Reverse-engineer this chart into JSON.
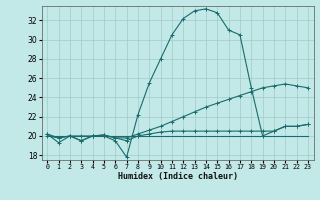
{
  "xlabel": "Humidex (Indice chaleur)",
  "bg_color": "#c2e8e8",
  "grid_color": "#a0cccc",
  "line_color": "#1a6b6b",
  "xlim": [
    -0.5,
    23.5
  ],
  "ylim": [
    17.5,
    33.5
  ],
  "yticks": [
    18,
    20,
    22,
    24,
    26,
    28,
    30,
    32
  ],
  "xtick_labels": [
    "0",
    "1",
    "2",
    "3",
    "4",
    "5",
    "6",
    "7",
    "8",
    "9",
    "10",
    "11",
    "12",
    "13",
    "14",
    "15",
    "16",
    "17",
    "18",
    "19",
    "20",
    "21",
    "22",
    "23"
  ],
  "line1_x": [
    0,
    1,
    2,
    3,
    4,
    5,
    6,
    7,
    8,
    9,
    10,
    11,
    12,
    13,
    14,
    15,
    16,
    17,
    18,
    19,
    20,
    21,
    22,
    23
  ],
  "line1_y": [
    20.2,
    19.3,
    20.0,
    20.0,
    20.0,
    20.0,
    19.5,
    17.8,
    22.2,
    25.5,
    28.0,
    30.5,
    32.2,
    33.0,
    33.2,
    32.8,
    31.0,
    30.5,
    25.0,
    20.0,
    20.5,
    21.0,
    21.0,
    21.2
  ],
  "line2_x": [
    0,
    1,
    2,
    3,
    4,
    5,
    6,
    7,
    8,
    9,
    10,
    11,
    12,
    13,
    14,
    15,
    16,
    17,
    18,
    19,
    20,
    21,
    22,
    23
  ],
  "line2_y": [
    20.0,
    19.8,
    20.0,
    19.5,
    20.0,
    20.1,
    19.8,
    19.8,
    20.2,
    20.6,
    21.0,
    21.5,
    22.0,
    22.5,
    23.0,
    23.4,
    23.8,
    24.2,
    24.6,
    25.0,
    25.2,
    25.4,
    25.2,
    25.0
  ],
  "line3_x": [
    0,
    23
  ],
  "line3_y": [
    20.0,
    20.0
  ],
  "line4_x": [
    0,
    1,
    2,
    3,
    4,
    5,
    6,
    7,
    8,
    9,
    10,
    11,
    12,
    13,
    14,
    15,
    16,
    17,
    18,
    19,
    20,
    21,
    22,
    23
  ],
  "line4_y": [
    20.2,
    19.8,
    20.0,
    19.5,
    20.0,
    20.1,
    19.8,
    19.5,
    20.0,
    20.2,
    20.4,
    20.5,
    20.5,
    20.5,
    20.5,
    20.5,
    20.5,
    20.5,
    20.5,
    20.5,
    20.5,
    21.0,
    21.0,
    21.2
  ]
}
